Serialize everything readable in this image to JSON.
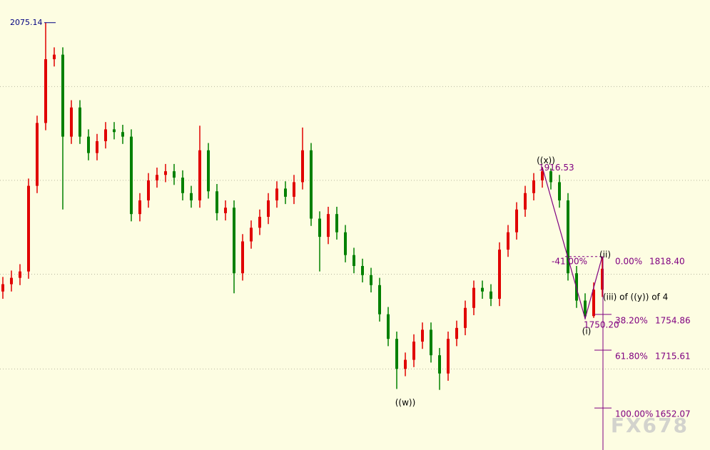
{
  "chart_data": {
    "type": "candlestick",
    "ylim": [
      1606,
      2100
    ],
    "gridlines": [
      2005,
      1902,
      1799,
      1695
    ],
    "up_color": "#e00000",
    "down_color": "#008000",
    "open": [
      1780,
      1788,
      1795,
      1802,
      1896,
      1965,
      2035,
      2040,
      1950,
      1982,
      1950,
      1932,
      1945,
      1958,
      1955,
      1950,
      1865,
      1880,
      1902,
      1908,
      1912,
      1905,
      1888,
      1880,
      1935,
      1890,
      1866,
      1872,
      1800,
      1835,
      1850,
      1862,
      1880,
      1893,
      1884,
      1900,
      1935,
      1860,
      1840,
      1865,
      1845,
      1820,
      1808,
      1798,
      1787,
      1755,
      1728,
      1695,
      1705,
      1725,
      1738,
      1710,
      1690,
      1728,
      1740,
      1762,
      1784,
      1780,
      1772,
      1826,
      1845,
      1870,
      1888,
      1902,
      1912,
      1900,
      1880,
      1800,
      1770,
      1753,
      1782
    ],
    "high": [
      1796,
      1803,
      1810,
      1904,
      1973,
      2075.14,
      2048,
      2048,
      1990,
      1990,
      1958,
      1953,
      1966,
      1966,
      1963,
      1958,
      1888,
      1910,
      1916,
      1920,
      1920,
      1913,
      1896,
      1962,
      1943,
      1898,
      1880,
      1880,
      1843,
      1858,
      1870,
      1888,
      1901,
      1901,
      1908,
      1960,
      1943,
      1868,
      1873,
      1873,
      1853,
      1828,
      1816,
      1806,
      1795,
      1763,
      1736,
      1713,
      1733,
      1746,
      1746,
      1718,
      1736,
      1748,
      1770,
      1792,
      1792,
      1788,
      1834,
      1853,
      1878,
      1896,
      1910,
      1916.53,
      1915,
      1908,
      1888,
      1808,
      1778,
      1790,
      1818.4
    ],
    "low": [
      1772,
      1780,
      1787,
      1794,
      1888,
      1957,
      2027,
      1870,
      1942,
      1942,
      1924,
      1924,
      1937,
      1947,
      1942,
      1857,
      1857,
      1872,
      1894,
      1900,
      1897,
      1880,
      1872,
      1872,
      1882,
      1858,
      1858,
      1778,
      1792,
      1827,
      1842,
      1854,
      1872,
      1876,
      1876,
      1892,
      1852,
      1802,
      1832,
      1837,
      1812,
      1800,
      1790,
      1779,
      1747,
      1720,
      1673,
      1687,
      1697,
      1717,
      1702,
      1672,
      1682,
      1720,
      1732,
      1754,
      1772,
      1764,
      1764,
      1818,
      1837,
      1862,
      1880,
      1894,
      1892,
      1872,
      1792,
      1762,
      1750.2,
      1751,
      1774
    ],
    "close": [
      1788,
      1795,
      1802,
      1896,
      1965,
      2035,
      2040,
      1950,
      1982,
      1950,
      1932,
      1945,
      1958,
      1955,
      1950,
      1865,
      1880,
      1902,
      1908,
      1912,
      1905,
      1888,
      1880,
      1935,
      1890,
      1866,
      1872,
      1800,
      1835,
      1850,
      1862,
      1880,
      1893,
      1884,
      1900,
      1935,
      1860,
      1840,
      1865,
      1845,
      1820,
      1808,
      1798,
      1787,
      1755,
      1728,
      1695,
      1705,
      1725,
      1738,
      1710,
      1690,
      1728,
      1740,
      1762,
      1784,
      1780,
      1772,
      1826,
      1845,
      1870,
      1888,
      1902,
      1912,
      1900,
      1880,
      1800,
      1770,
      1753,
      1782,
      1805
    ],
    "peak_label": "2075.14",
    "wave_labels": {
      "x": "((x))",
      "w": "((w))",
      "i": "(i)",
      "ii": "(ii)",
      "iii": "(iii)  of ((y)) of 4"
    },
    "high_label": "1916.53",
    "low_label": "1750.20",
    "retrace_label": "-41.00%",
    "fib_levels": [
      {
        "ratio": {
          "value": 0,
          "label": "0.00%"
        },
        "price": {
          "value": 1818.4,
          "label": "1818.40"
        }
      },
      {
        "ratio": {
          "value": 38.2,
          "label": "38.20%"
        },
        "price": {
          "value": 1754.86,
          "label": "1754.86"
        }
      },
      {
        "ratio": {
          "value": 61.8,
          "label": "61.80%"
        },
        "price": {
          "value": 1715.61,
          "label": "1715.61"
        }
      },
      {
        "ratio": {
          "value": 100,
          "label": "100.00%"
        },
        "price": {
          "value": 1652.07,
          "label": "1652.07"
        }
      }
    ],
    "watermark": "FX678"
  }
}
